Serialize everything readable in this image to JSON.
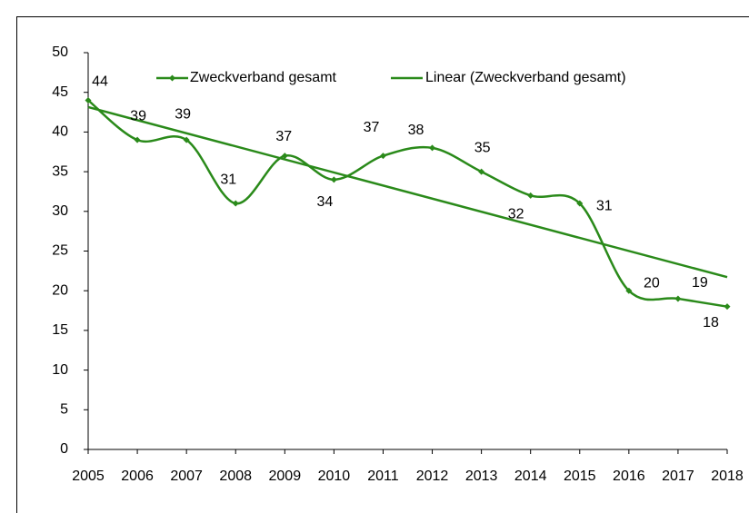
{
  "chart_data": {
    "type": "line",
    "categories": [
      "2005",
      "2006",
      "2007",
      "2008",
      "2009",
      "2010",
      "2011",
      "2012",
      "2013",
      "2014",
      "2015",
      "2016",
      "2017",
      "2018"
    ],
    "series": [
      {
        "name": "Zweckverband gesamt",
        "color": "#2a8a1a",
        "values": [
          44,
          39,
          39,
          31,
          37,
          34,
          37,
          38,
          35,
          32,
          31,
          20,
          19,
          18
        ]
      }
    ],
    "trendline": {
      "name": "Linear (Zweckverband gesamt)",
      "kind": "linear",
      "color": "#2a8a1a"
    },
    "smooth": true,
    "data_labels": true,
    "ylim": [
      0,
      50
    ],
    "yticks": [
      0,
      5,
      10,
      15,
      20,
      25,
      30,
      35,
      40,
      45,
      50
    ],
    "grid": false,
    "legend": "top"
  }
}
